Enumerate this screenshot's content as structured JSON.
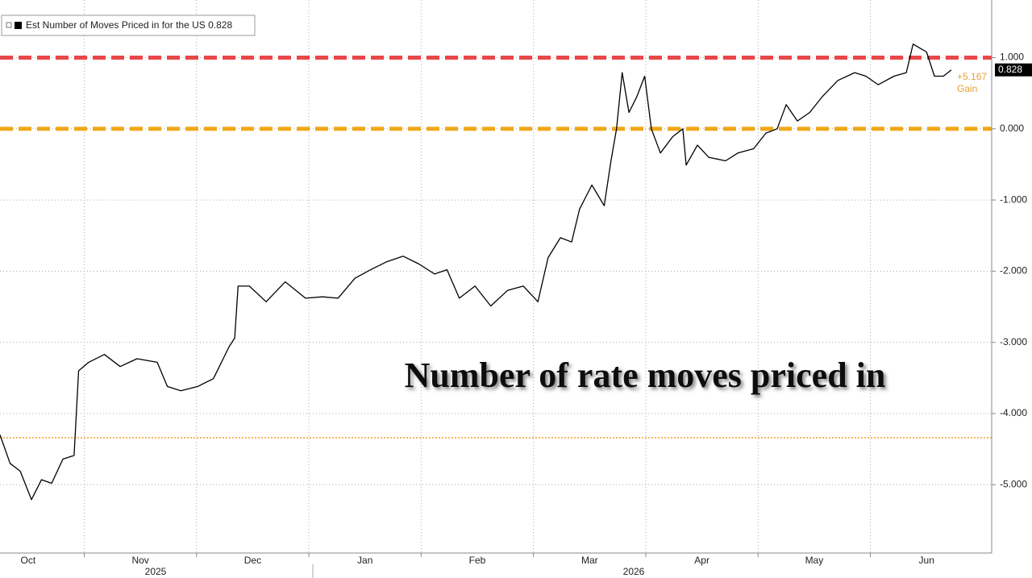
{
  "chart_data": {
    "type": "line",
    "annotation": "Number of rate moves priced in",
    "gain_value": "+5.167",
    "gain_label": "Gain",
    "last_value": 0.828,
    "categories": [
      "Oct",
      "Nov",
      "Dec",
      "Jan",
      "Feb",
      "Mar",
      "Apr",
      "May",
      "Jun"
    ],
    "years": [
      "2025",
      "2026"
    ],
    "xlim": [
      0.25,
      9.08
    ],
    "xticks": [
      1,
      2,
      3,
      4,
      5,
      6,
      7,
      8
    ],
    "x": [
      0.25,
      0.34,
      0.43,
      0.53,
      0.62,
      0.71,
      0.81,
      0.91,
      0.95,
      1.04,
      1.18,
      1.32,
      1.47,
      1.65,
      1.74,
      1.86,
      2.01,
      2.15,
      2.29,
      2.34,
      2.37,
      2.47,
      2.62,
      2.79,
      2.97,
      3.12,
      3.26,
      3.41,
      3.55,
      3.69,
      3.84,
      3.98,
      4.12,
      4.23,
      4.34,
      4.48,
      4.62,
      4.77,
      4.91,
      5.04,
      5.13,
      5.24,
      5.34,
      5.41,
      5.52,
      5.63,
      5.69,
      5.74,
      5.79,
      5.85,
      5.92,
      5.99,
      6.05,
      6.13,
      6.24,
      6.33,
      6.36,
      6.46,
      6.56,
      6.71,
      6.82,
      6.96,
      7.07,
      7.17,
      7.25,
      7.35,
      7.46,
      7.57,
      7.71,
      7.86,
      7.96,
      8.07,
      8.21,
      8.32,
      8.38,
      8.5,
      8.57,
      8.65,
      8.72
    ],
    "series": [
      {
        "name": "Est Number of Moves Priced in for the US",
        "color": "#000000",
        "values": [
          -4.3,
          -4.7,
          -4.81,
          -5.21,
          -4.93,
          -4.98,
          -4.64,
          -4.59,
          -3.4,
          -3.28,
          -3.17,
          -3.34,
          -3.23,
          -3.28,
          -3.62,
          -3.68,
          -3.62,
          -3.51,
          -3.06,
          -2.94,
          -2.21,
          -2.21,
          -2.43,
          -2.15,
          -2.38,
          -2.36,
          -2.38,
          -2.1,
          -1.98,
          -1.87,
          -1.79,
          -1.9,
          -2.04,
          -1.98,
          -2.38,
          -2.21,
          -2.49,
          -2.27,
          -2.21,
          -2.43,
          -1.81,
          -1.53,
          -1.59,
          -1.13,
          -0.79,
          -1.08,
          -0.45,
          0.0,
          0.79,
          0.23,
          0.45,
          0.74,
          0.0,
          -0.34,
          -0.11,
          0.0,
          -0.51,
          -0.23,
          -0.4,
          -0.45,
          -0.34,
          -0.28,
          -0.06,
          0.0,
          0.34,
          0.11,
          0.23,
          0.45,
          0.68,
          0.79,
          0.74,
          0.62,
          0.74,
          0.79,
          1.19,
          1.08,
          0.74,
          0.74,
          0.828
        ]
      }
    ],
    "reference_lines": [
      {
        "value": 1,
        "color": "#e8474a",
        "style": "dashed"
      },
      {
        "value": 0,
        "color": "#f0a818",
        "style": "dashed"
      },
      {
        "value": -4.34,
        "color": "#f08a00",
        "style": "dotted"
      }
    ],
    "ylim": [
      -5.96,
      1.81
    ],
    "yticks": [
      {
        "value": 1,
        "label": "1.000"
      },
      {
        "value": 0,
        "label": "0.000"
      },
      {
        "value": -1,
        "label": "-1.000"
      },
      {
        "value": -2,
        "label": "-2.000"
      },
      {
        "value": -3,
        "label": "-3.000"
      },
      {
        "value": -4,
        "label": "-4.000"
      },
      {
        "value": -5,
        "label": "-5.000"
      }
    ],
    "grid": true
  }
}
